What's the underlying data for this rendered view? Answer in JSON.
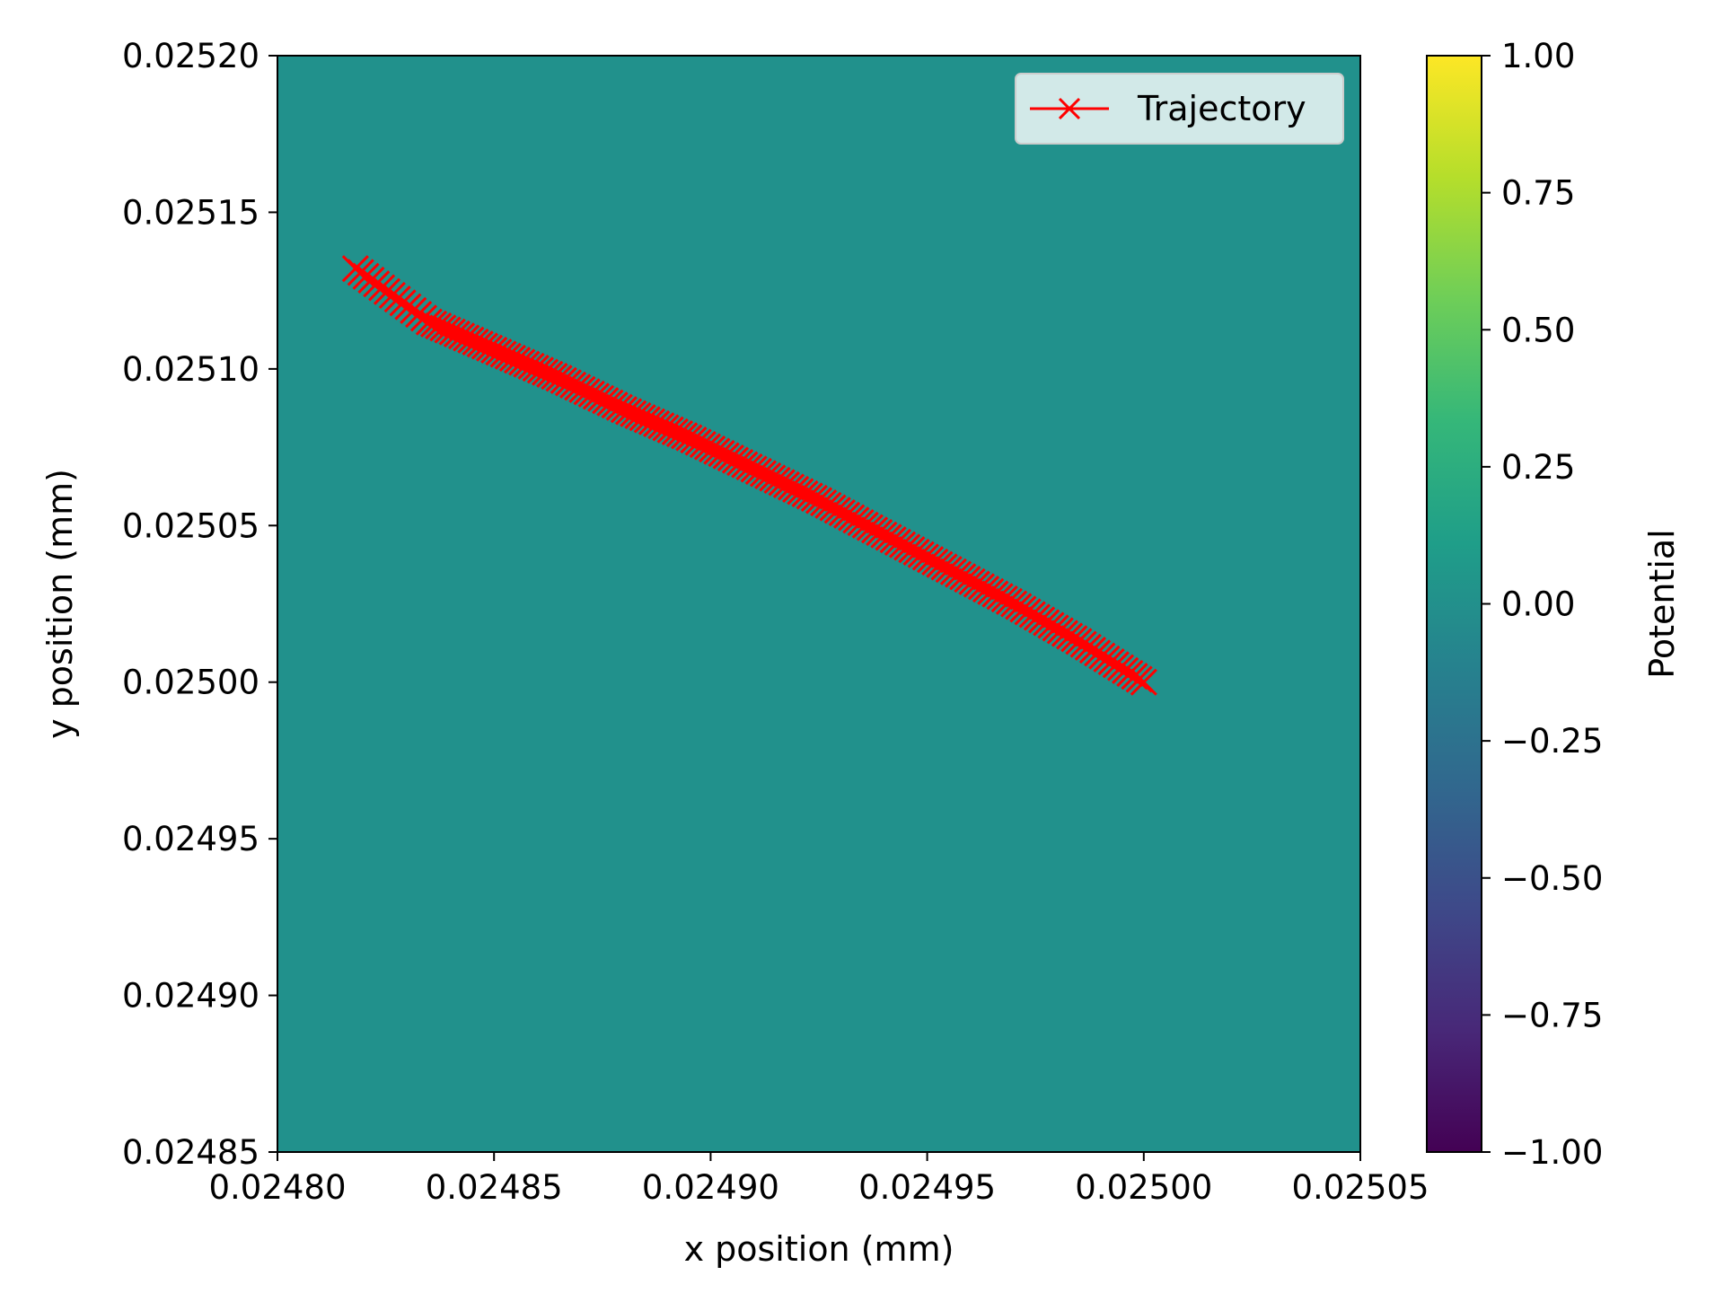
{
  "chart_data": {
    "type": "line",
    "title": "",
    "xlabel": "x position (mm)",
    "ylabel": "y position (mm)",
    "xlim": [
      0.0248,
      0.02505
    ],
    "ylim": [
      0.02485,
      0.0252
    ],
    "x_ticks": [
      "0.02480",
      "0.02485",
      "0.02490",
      "0.02495",
      "0.02500",
      "0.02505"
    ],
    "x_tick_values": [
      0.0248,
      0.02485,
      0.0249,
      0.02495,
      0.025,
      0.02505
    ],
    "y_ticks": [
      "0.02485",
      "0.02490",
      "0.02495",
      "0.02500",
      "0.02505",
      "0.02510",
      "0.02515",
      "0.02520"
    ],
    "y_tick_values": [
      0.02485,
      0.0249,
      0.02495,
      0.025,
      0.02505,
      0.0251,
      0.02515,
      0.0252
    ],
    "grid": false,
    "background_color": "#21918c",
    "series": [
      {
        "name": "Trajectory",
        "color": "#ff0000",
        "marker": "x",
        "x": [
          0.025,
          0.024985,
          0.02497,
          0.024955,
          0.02494,
          0.024925,
          0.02491,
          0.024895,
          0.02488,
          0.024865,
          0.02485,
          0.024835,
          0.024818
        ],
        "y": [
          0.025,
          0.025013,
          0.025025,
          0.025036,
          0.025047,
          0.025058,
          0.025068,
          0.025078,
          0.025087,
          0.025097,
          0.025106,
          0.025115,
          0.025132
        ]
      }
    ],
    "legend": {
      "position": "top-right",
      "entries": [
        "Trajectory"
      ]
    },
    "colorbar": {
      "label": "Potential",
      "colormap": "viridis",
      "range": [
        -1.0,
        1.0
      ],
      "ticks": [
        "1.00",
        "0.75",
        "0.50",
        "0.25",
        "0.00",
        "−0.25",
        "−0.50",
        "−0.75",
        "−1.00"
      ],
      "tick_values": [
        1.0,
        0.75,
        0.5,
        0.25,
        0.0,
        -0.25,
        -0.5,
        -0.75,
        -1.0
      ],
      "colors": [
        "#440154",
        "#482878",
        "#3e4989",
        "#31688e",
        "#26828e",
        "#1f9e89",
        "#35b779",
        "#6ece58",
        "#b5de2b",
        "#fde725"
      ]
    }
  }
}
